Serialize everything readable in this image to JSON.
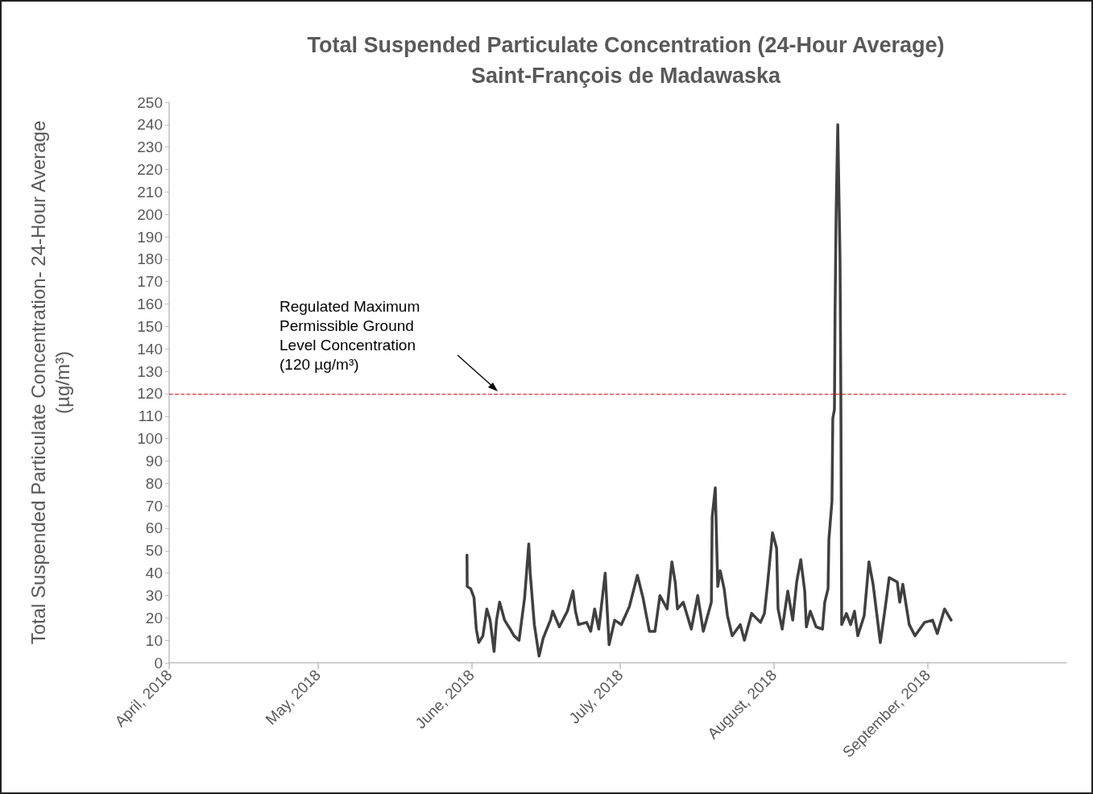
{
  "chart_data": {
    "type": "line",
    "title": "Total Suspended Particulate Concentration (24-Hour Average)",
    "subtitle": "Saint-François de Madawaska",
    "ylabel": "Total Suspended Particulate Concentration- 24-Hour Average\n(µg/m³)",
    "xlim": [
      "2018-04-01",
      "2018-09-29"
    ],
    "xticks": [
      {
        "value": "2018-04-01",
        "label": "April, 2018"
      },
      {
        "value": "2018-05-01",
        "label": "May, 2018"
      },
      {
        "value": "2018-06-01",
        "label": "June, 2018"
      },
      {
        "value": "2018-07-01",
        "label": "July, 2018"
      },
      {
        "value": "2018-08-01",
        "label": "August, 2018"
      },
      {
        "value": "2018-09-01",
        "label": "September, 2018"
      }
    ],
    "ylim": [
      0,
      250
    ],
    "yticks": [
      0,
      10,
      20,
      30,
      40,
      50,
      60,
      70,
      80,
      90,
      100,
      110,
      120,
      130,
      140,
      150,
      160,
      170,
      180,
      190,
      200,
      210,
      220,
      230,
      240,
      250
    ],
    "grid": false,
    "marker": "none",
    "line_style": "solid",
    "ref_lines": [
      {
        "axis": "y",
        "value": 120,
        "label": "Regulated Maximum\nPermissible Ground\nLevel Concentration\n(120 µg/m³)",
        "color": "#e0191e",
        "line_style": "dashed"
      }
    ],
    "series": [
      {
        "color": "#404040",
        "x": [
          "2018-05-31T02:00",
          "2018-05-31T03:00",
          "2018-05-31T20:00",
          "2018-06-01T12:00",
          "2018-06-01T23:00",
          "2018-06-02T11:00",
          "2018-06-03T07:00",
          "2018-06-04T02:00",
          "2018-06-04T18:00",
          "2018-06-05T13:00",
          "2018-06-06T01:00",
          "2018-06-06T16:00",
          "2018-06-07T16:00",
          "2018-06-08T19:00",
          "2018-06-09T14:00",
          "2018-06-10T14:00",
          "2018-06-11T17:00",
          "2018-06-12T13:00",
          "2018-06-12T20:00",
          "2018-06-13T16:00",
          "2018-06-14T15:00",
          "2018-06-15T11:00",
          "2018-06-16T22:00",
          "2018-06-17T09:00",
          "2018-06-18T17:00",
          "2018-06-20T08:00",
          "2018-06-21T11:00",
          "2018-06-21T23:00",
          "2018-06-22T14:00",
          "2018-06-24T05:00",
          "2018-06-25T01:00",
          "2018-06-25T20:00",
          "2018-06-26T16:00",
          "2018-06-27T23:00",
          "2018-06-28T18:00",
          "2018-06-29T21:00",
          "2018-07-01T05:00",
          "2018-07-02T20:00",
          "2018-07-04T11:00",
          "2018-07-05T14:00",
          "2018-07-06T21:00",
          "2018-07-08T00:00",
          "2018-07-09T00:00",
          "2018-07-10T11:00",
          "2018-07-11T10:00",
          "2018-07-12T02:00",
          "2018-07-12T13:00",
          "2018-07-13T17:00",
          "2018-07-15T08:00",
          "2018-07-16T15:00",
          "2018-07-17T18:00",
          "2018-07-19T09:00",
          "2018-07-19T13:00",
          "2018-07-20T04:00",
          "2018-07-20T16:00",
          "2018-07-21T04:00",
          "2018-07-21T23:00",
          "2018-07-22T15:00",
          "2018-07-23T14:00",
          "2018-07-25T05:00",
          "2018-07-26T01:00",
          "2018-07-27T12:00",
          "2018-07-29T07:00",
          "2018-07-30T02:00",
          "2018-07-30T18:00",
          "2018-07-31T17:00",
          "2018-08-01T13:00",
          "2018-08-01T20:00",
          "2018-08-02T16:00",
          "2018-08-03T19:00",
          "2018-08-04T19:00",
          "2018-08-05T14:00",
          "2018-08-06T10:00",
          "2018-08-07T05:00",
          "2018-08-07T13:00",
          "2018-08-08T08:00",
          "2018-08-09T12:00",
          "2018-08-10T19:00",
          "2018-08-11T06:00",
          "2018-08-11T22:00",
          "2018-08-12T02:00",
          "2018-08-12T17:00",
          "2018-08-12T21:00",
          "2018-08-13T05:00",
          "2018-08-13T08:00",
          "2018-08-13T13:00",
          "2018-08-13T21:00",
          "2018-08-14T08:00",
          "2018-08-14T12:00",
          "2018-08-14T16:00",
          "2018-08-15T15:00",
          "2018-08-16T11:00",
          "2018-08-17T06:00",
          "2018-08-17T22:00",
          "2018-08-19T05:00",
          "2018-08-20T04:00",
          "2018-08-21T00:00",
          "2018-08-22T11:00",
          "2018-08-23T10:00",
          "2018-08-24T06:00",
          "2018-08-25T21:00",
          "2018-08-26T09:00",
          "2018-08-27T00:00",
          "2018-08-28T07:00",
          "2018-08-29T11:00",
          "2018-08-31T09:00",
          "2018-09-02T00:00",
          "2018-09-02T23:00",
          "2018-09-04T10:00",
          "2018-09-05T18:00"
        ],
        "values": [
          48,
          34,
          33,
          29,
          15,
          9,
          12,
          24,
          19,
          5,
          19,
          27,
          19,
          15,
          12,
          10,
          29,
          53,
          40,
          17,
          3,
          11,
          19,
          23,
          16,
          23,
          32,
          23,
          17,
          18,
          14,
          24,
          15,
          40,
          8,
          19,
          17,
          25,
          39,
          29,
          14,
          14,
          30,
          24,
          45,
          36,
          24,
          27,
          15,
          30,
          14,
          27,
          65,
          78,
          34,
          41,
          33,
          21,
          12,
          17,
          10,
          22,
          18,
          22,
          36,
          58,
          51,
          24,
          15,
          32,
          19,
          36,
          46,
          32,
          16,
          23,
          16,
          15,
          27,
          33,
          55,
          72,
          109,
          113,
          157,
          200,
          240,
          180,
          120,
          17,
          22,
          17,
          23,
          12,
          21,
          45,
          35,
          9,
          24,
          38,
          36,
          27,
          35,
          17,
          12,
          18,
          19,
          13,
          24,
          19
        ]
      }
    ]
  }
}
